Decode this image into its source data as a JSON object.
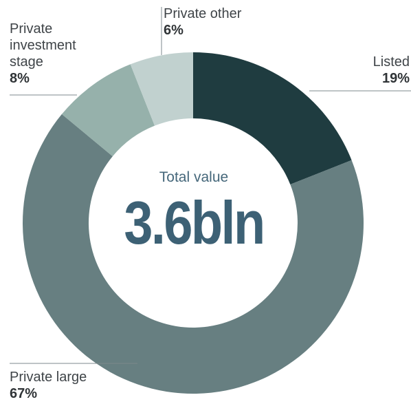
{
  "chart_data": {
    "type": "pie",
    "variant": "donut",
    "center_caption": "Total value",
    "center_value": "3.6bln",
    "slices": [
      {
        "name": "Listed",
        "value": 19,
        "label": "19%",
        "color": "#1f3c40"
      },
      {
        "name": "Private large",
        "value": 67,
        "label": "67%",
        "color": "#677f81"
      },
      {
        "name": "Private investment stage",
        "value": 8,
        "label": "8%",
        "color": "#96b1ab"
      },
      {
        "name": "Private other",
        "value": 6,
        "label": "6%",
        "color": "#c1d1cf"
      }
    ],
    "legend": "none"
  },
  "labels": {
    "listed_name": "Listed",
    "listed_pct": "19%",
    "private_large_name": "Private large",
    "private_large_pct": "67%",
    "investment_line1": "Private",
    "investment_line2": "investment",
    "investment_line3": "stage",
    "investment_pct": "8%",
    "other_name": "Private other",
    "other_pct": "6%"
  }
}
